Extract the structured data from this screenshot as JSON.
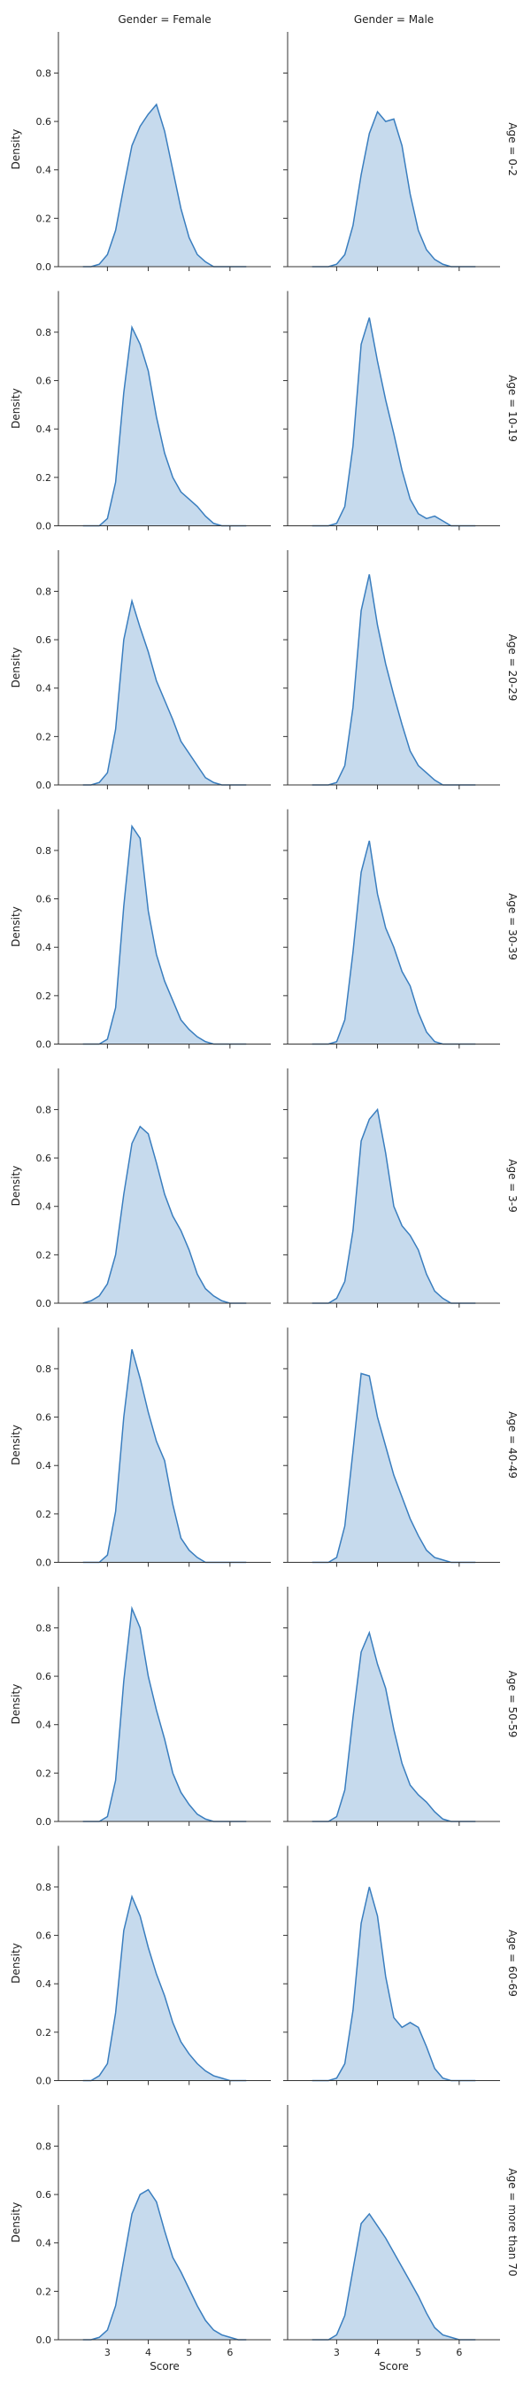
{
  "chart_data": {
    "type": "area",
    "kind": "kde-facet-grid",
    "column_titles": [
      "Gender = Female",
      "Gender = Male"
    ],
    "row_titles": [
      "Age = 0-2",
      "Age = 10-19",
      "Age = 20-29",
      "Age = 30-39",
      "Age = 3-9",
      "Age = 40-49",
      "Age = 50-59",
      "Age = 60-69",
      "Age = more than 70"
    ],
    "xlabel": "Score",
    "ylabel": "Density",
    "xlim": [
      1.8,
      7.0
    ],
    "ylim": [
      0,
      0.97
    ],
    "xticks": [
      3,
      4,
      5,
      6
    ],
    "yticks": [
      0.0,
      0.2,
      0.4,
      0.6,
      0.8
    ],
    "x": [
      2.4,
      2.6,
      2.8,
      3.0,
      3.2,
      3.4,
      3.6,
      3.8,
      4.0,
      4.2,
      4.4,
      4.6,
      4.8,
      5.0,
      5.2,
      5.4,
      5.6,
      5.8,
      6.0,
      6.2,
      6.4
    ],
    "colors": {
      "line": "#3a7ebf",
      "fill": "#c3d8ec",
      "axis": "#333333"
    },
    "panels": [
      {
        "row": 0,
        "col": 0,
        "values": [
          0.0,
          0.0,
          0.01,
          0.05,
          0.15,
          0.33,
          0.5,
          0.58,
          0.63,
          0.67,
          0.56,
          0.4,
          0.24,
          0.12,
          0.05,
          0.02,
          0.0,
          0.0,
          0.0,
          0.0,
          0.0
        ]
      },
      {
        "row": 0,
        "col": 1,
        "values": [
          0.0,
          0.0,
          0.0,
          0.01,
          0.05,
          0.17,
          0.38,
          0.55,
          0.64,
          0.6,
          0.61,
          0.5,
          0.3,
          0.15,
          0.07,
          0.03,
          0.01,
          0.0,
          0.0,
          0.0,
          0.0
        ]
      },
      {
        "row": 1,
        "col": 0,
        "values": [
          0.0,
          0.0,
          0.0,
          0.03,
          0.18,
          0.55,
          0.82,
          0.75,
          0.64,
          0.45,
          0.3,
          0.2,
          0.14,
          0.11,
          0.08,
          0.04,
          0.01,
          0.0,
          0.0,
          0.0,
          0.0
        ]
      },
      {
        "row": 1,
        "col": 1,
        "values": [
          0.0,
          0.0,
          0.0,
          0.01,
          0.08,
          0.33,
          0.75,
          0.86,
          0.68,
          0.52,
          0.38,
          0.23,
          0.11,
          0.05,
          0.03,
          0.04,
          0.02,
          0.0,
          0.0,
          0.0,
          0.0
        ]
      },
      {
        "row": 2,
        "col": 0,
        "values": [
          0.0,
          0.0,
          0.01,
          0.05,
          0.23,
          0.6,
          0.76,
          0.65,
          0.55,
          0.43,
          0.35,
          0.27,
          0.18,
          0.13,
          0.08,
          0.03,
          0.01,
          0.0,
          0.0,
          0.0,
          0.0
        ]
      },
      {
        "row": 2,
        "col": 1,
        "values": [
          0.0,
          0.0,
          0.0,
          0.01,
          0.08,
          0.32,
          0.72,
          0.87,
          0.66,
          0.5,
          0.37,
          0.25,
          0.14,
          0.08,
          0.05,
          0.02,
          0.0,
          0.0,
          0.0,
          0.0,
          0.0
        ]
      },
      {
        "row": 3,
        "col": 0,
        "values": [
          0.0,
          0.0,
          0.0,
          0.02,
          0.15,
          0.57,
          0.9,
          0.85,
          0.55,
          0.37,
          0.26,
          0.18,
          0.1,
          0.06,
          0.03,
          0.01,
          0.0,
          0.0,
          0.0,
          0.0,
          0.0
        ]
      },
      {
        "row": 3,
        "col": 1,
        "values": [
          0.0,
          0.0,
          0.0,
          0.01,
          0.1,
          0.38,
          0.71,
          0.84,
          0.62,
          0.48,
          0.4,
          0.3,
          0.24,
          0.13,
          0.05,
          0.01,
          0.0,
          0.0,
          0.0,
          0.0,
          0.0
        ]
      },
      {
        "row": 4,
        "col": 0,
        "values": [
          0.0,
          0.01,
          0.03,
          0.08,
          0.2,
          0.45,
          0.66,
          0.73,
          0.7,
          0.58,
          0.45,
          0.36,
          0.3,
          0.22,
          0.12,
          0.06,
          0.03,
          0.01,
          0.0,
          0.0,
          0.0
        ]
      },
      {
        "row": 4,
        "col": 1,
        "values": [
          0.0,
          0.0,
          0.0,
          0.02,
          0.09,
          0.3,
          0.67,
          0.76,
          0.8,
          0.62,
          0.4,
          0.32,
          0.28,
          0.22,
          0.12,
          0.05,
          0.02,
          0.0,
          0.0,
          0.0,
          0.0
        ]
      },
      {
        "row": 5,
        "col": 0,
        "values": [
          0.0,
          0.0,
          0.0,
          0.03,
          0.21,
          0.6,
          0.88,
          0.76,
          0.62,
          0.5,
          0.42,
          0.24,
          0.1,
          0.05,
          0.02,
          0.0,
          0.0,
          0.0,
          0.0,
          0.0,
          0.0
        ]
      },
      {
        "row": 5,
        "col": 1,
        "values": [
          0.0,
          0.0,
          0.0,
          0.02,
          0.15,
          0.46,
          0.78,
          0.77,
          0.6,
          0.48,
          0.36,
          0.27,
          0.18,
          0.11,
          0.05,
          0.02,
          0.01,
          0.0,
          0.0,
          0.0,
          0.0
        ]
      },
      {
        "row": 6,
        "col": 0,
        "values": [
          0.0,
          0.0,
          0.0,
          0.02,
          0.17,
          0.58,
          0.88,
          0.8,
          0.6,
          0.46,
          0.34,
          0.2,
          0.12,
          0.07,
          0.03,
          0.01,
          0.0,
          0.0,
          0.0,
          0.0,
          0.0
        ]
      },
      {
        "row": 6,
        "col": 1,
        "values": [
          0.0,
          0.0,
          0.0,
          0.02,
          0.13,
          0.43,
          0.7,
          0.78,
          0.65,
          0.55,
          0.38,
          0.24,
          0.15,
          0.11,
          0.08,
          0.04,
          0.01,
          0.0,
          0.0,
          0.0,
          0.0
        ]
      },
      {
        "row": 7,
        "col": 0,
        "values": [
          0.0,
          0.0,
          0.02,
          0.07,
          0.28,
          0.62,
          0.76,
          0.68,
          0.55,
          0.44,
          0.35,
          0.24,
          0.16,
          0.11,
          0.07,
          0.04,
          0.02,
          0.01,
          0.0,
          0.0,
          0.0
        ]
      },
      {
        "row": 7,
        "col": 1,
        "values": [
          0.0,
          0.0,
          0.0,
          0.01,
          0.07,
          0.29,
          0.65,
          0.8,
          0.68,
          0.43,
          0.26,
          0.22,
          0.24,
          0.22,
          0.14,
          0.05,
          0.01,
          0.0,
          0.0,
          0.0,
          0.0
        ]
      },
      {
        "row": 8,
        "col": 0,
        "values": [
          0.0,
          0.0,
          0.01,
          0.04,
          0.14,
          0.33,
          0.52,
          0.6,
          0.62,
          0.57,
          0.45,
          0.34,
          0.28,
          0.21,
          0.14,
          0.08,
          0.04,
          0.02,
          0.01,
          0.0,
          0.0
        ]
      },
      {
        "row": 8,
        "col": 1,
        "values": [
          0.0,
          0.0,
          0.0,
          0.02,
          0.1,
          0.29,
          0.48,
          0.52,
          0.47,
          0.42,
          0.36,
          0.3,
          0.24,
          0.18,
          0.11,
          0.05,
          0.02,
          0.01,
          0.0,
          0.0,
          0.0
        ]
      }
    ]
  }
}
